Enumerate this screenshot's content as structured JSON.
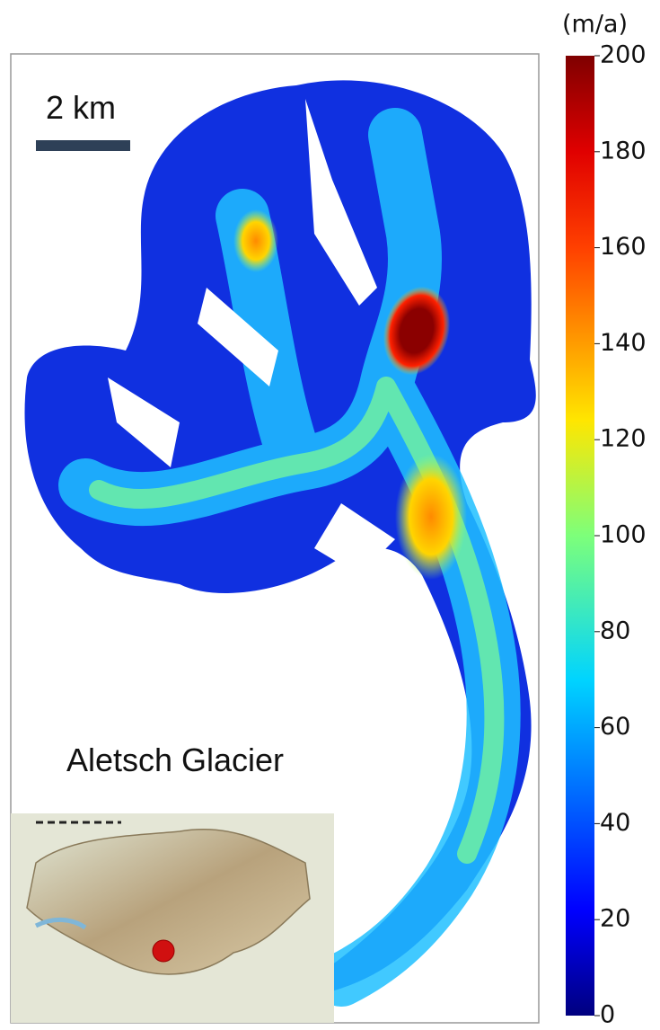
{
  "scale_bar": {
    "label": "2 km"
  },
  "location_label": "Aletsch Glacier",
  "colorbar": {
    "label": "(m/a)",
    "lim": [
      0,
      200
    ],
    "ticks": [
      0,
      20,
      40,
      60,
      80,
      100,
      120,
      140,
      160,
      180,
      200
    ]
  }
}
